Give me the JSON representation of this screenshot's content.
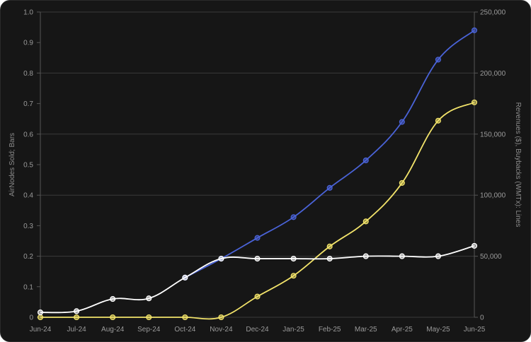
{
  "chart_data": {
    "type": "line",
    "categories": [
      "Jun-24",
      "Jul-24",
      "Aug-24",
      "Sep-24",
      "Oct-24",
      "Nov-24",
      "Dec-24",
      "Jan-25",
      "Feb-25",
      "Mar-25",
      "Apr-25",
      "May-25",
      "Jun-25"
    ],
    "left_axis": {
      "label": "AirNodes Sold; Bars",
      "ylim": [
        0,
        1.0
      ],
      "ticks": [
        "0",
        "0.1",
        "0.2",
        "0.3",
        "0.4",
        "0.5",
        "0.6",
        "0.7",
        "0.8",
        "0.9",
        "1.0"
      ]
    },
    "right_axis": {
      "label": "Revenues ($), Buybacks (WMTx): Lines",
      "ylim": [
        0,
        250000
      ],
      "ticks": [
        "0",
        "50,000",
        "100,000",
        "150,000",
        "200,000",
        "250,000"
      ]
    },
    "series": [
      {
        "color": "#4a63d8",
        "axis": "right",
        "values": [
          null,
          null,
          null,
          null,
          32500,
          48000,
          65000,
          82000,
          106000,
          128500,
          160000,
          211000,
          235000
        ]
      },
      {
        "color": "#f2e36a",
        "axis": "right",
        "values": [
          0,
          0,
          0,
          0,
          0,
          0,
          17000,
          34000,
          58000,
          78500,
          110000,
          161000,
          176000
        ]
      },
      {
        "color": "#ffffff",
        "axis": "right",
        "values": [
          4000,
          5000,
          15000,
          15500,
          32500,
          48000,
          48000,
          48000,
          48000,
          50000,
          50000,
          50000,
          58500
        ]
      }
    ],
    "grid": true,
    "legend": "none"
  }
}
